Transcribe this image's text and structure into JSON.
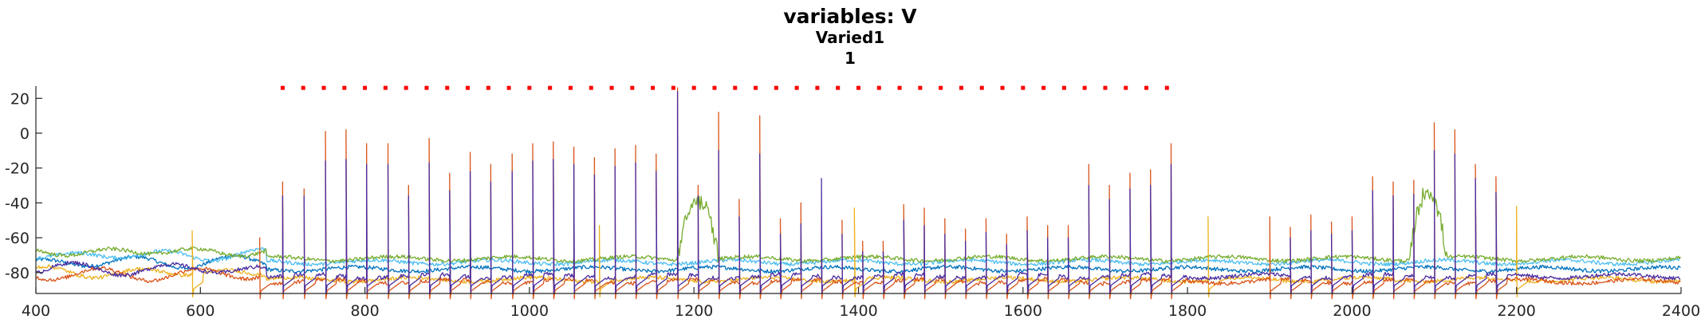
{
  "chart_data": {
    "type": "line",
    "title": "variables: V",
    "subtitle": "Varied1",
    "subtitle2": "1",
    "xlabel": "",
    "ylabel": "",
    "xlim": [
      400,
      2400
    ],
    "ylim": [
      -92,
      27
    ],
    "xticks": [
      400,
      600,
      800,
      1000,
      1200,
      1400,
      1600,
      1800,
      2000,
      2200,
      2400
    ],
    "yticks": [
      -80,
      -60,
      -40,
      -20,
      0,
      20
    ],
    "grid": false,
    "legend": "none",
    "baseline": -80,
    "spike_train": {
      "start": 700,
      "end": 1780,
      "interval": 25,
      "y": 26,
      "color": "#ff0000"
    },
    "series": [
      {
        "color": "#d95319",
        "rest": -85,
        "spikes": [
          [
            672,
            -60
          ],
          [
            700,
            -28
          ],
          [
            726,
            -32
          ],
          [
            752,
            1
          ],
          [
            777,
            2
          ],
          [
            802,
            -6
          ],
          [
            828,
            -6
          ],
          [
            853,
            -30
          ],
          [
            878,
            -3
          ],
          [
            903,
            -23
          ],
          [
            928,
            -11
          ],
          [
            953,
            -18
          ],
          [
            979,
            -12
          ],
          [
            1004,
            -6
          ],
          [
            1029,
            -5
          ],
          [
            1054,
            -8
          ],
          [
            1079,
            -14
          ],
          [
            1104,
            -9
          ],
          [
            1129,
            -7
          ],
          [
            1154,
            -12
          ],
          [
            1180,
            26
          ],
          [
            1205,
            -30
          ],
          [
            1230,
            12
          ],
          [
            1255,
            -38
          ],
          [
            1280,
            10
          ],
          [
            1305,
            -49
          ],
          [
            1330,
            -40
          ],
          [
            1355,
            -48
          ],
          [
            1380,
            -50
          ],
          [
            1405,
            -62
          ],
          [
            1430,
            -62
          ],
          [
            1455,
            -41
          ],
          [
            1480,
            -43
          ],
          [
            1505,
            -49
          ],
          [
            1530,
            -55
          ],
          [
            1555,
            -49
          ],
          [
            1580,
            -58
          ],
          [
            1605,
            -48
          ],
          [
            1630,
            -53
          ],
          [
            1655,
            -53
          ],
          [
            1680,
            -18
          ],
          [
            1705,
            -30
          ],
          [
            1730,
            -23
          ],
          [
            1755,
            -21
          ],
          [
            1780,
            -6
          ],
          [
            1900,
            -48
          ],
          [
            1925,
            -54
          ],
          [
            1950,
            -47
          ],
          [
            1975,
            -51
          ],
          [
            2000,
            -48
          ],
          [
            2025,
            -25
          ],
          [
            2050,
            -28
          ],
          [
            2075,
            -27
          ],
          [
            2100,
            6
          ],
          [
            2125,
            2
          ],
          [
            2150,
            -18
          ],
          [
            2175,
            -25
          ]
        ]
      },
      {
        "color": "#4a2c9f",
        "rest": -82,
        "spikes": [
          [
            700,
            -36
          ],
          [
            726,
            -36
          ],
          [
            752,
            -16
          ],
          [
            777,
            -15
          ],
          [
            802,
            -18
          ],
          [
            828,
            -18
          ],
          [
            853,
            -36
          ],
          [
            878,
            -17
          ],
          [
            903,
            -33
          ],
          [
            928,
            -22
          ],
          [
            953,
            -28
          ],
          [
            979,
            -22
          ],
          [
            1004,
            -16
          ],
          [
            1029,
            -15
          ],
          [
            1054,
            -18
          ],
          [
            1079,
            -24
          ],
          [
            1104,
            -19
          ],
          [
            1129,
            -17
          ],
          [
            1154,
            -22
          ],
          [
            1180,
            24
          ],
          [
            1205,
            -36
          ],
          [
            1230,
            -10
          ],
          [
            1255,
            -48
          ],
          [
            1280,
            -12
          ],
          [
            1305,
            -58
          ],
          [
            1330,
            -52
          ],
          [
            1355,
            -26
          ],
          [
            1380,
            -58
          ],
          [
            1405,
            -68
          ],
          [
            1430,
            -68
          ],
          [
            1455,
            -50
          ],
          [
            1480,
            -53
          ],
          [
            1505,
            -58
          ],
          [
            1530,
            -62
          ],
          [
            1555,
            -57
          ],
          [
            1580,
            -64
          ],
          [
            1605,
            -56
          ],
          [
            1630,
            -60
          ],
          [
            1655,
            -60
          ],
          [
            1680,
            -30
          ],
          [
            1705,
            -38
          ],
          [
            1730,
            -32
          ],
          [
            1755,
            -30
          ],
          [
            1780,
            -18
          ],
          [
            1925,
            -60
          ],
          [
            1950,
            -56
          ],
          [
            1975,
            -58
          ],
          [
            2000,
            -56
          ],
          [
            2025,
            -33
          ],
          [
            2050,
            -36
          ],
          [
            2075,
            -35
          ],
          [
            2100,
            -10
          ],
          [
            2125,
            -12
          ],
          [
            2150,
            -26
          ],
          [
            2175,
            -34
          ]
        ]
      },
      {
        "color": "#edb120",
        "rest": -84,
        "spikes": [
          [
            590,
            -56
          ],
          [
            1085,
            -53
          ],
          [
            1395,
            -43
          ],
          [
            1825,
            -48
          ],
          [
            2200,
            -42
          ]
        ]
      },
      {
        "color": "#77ac30",
        "rest": -72,
        "bursts": [
          [
            1180,
            1230,
            -33
          ],
          [
            2070,
            2115,
            -26
          ]
        ]
      },
      {
        "color": "#4dbeee",
        "rest": -74
      },
      {
        "color": "#0072bd",
        "rest": -78
      }
    ]
  }
}
